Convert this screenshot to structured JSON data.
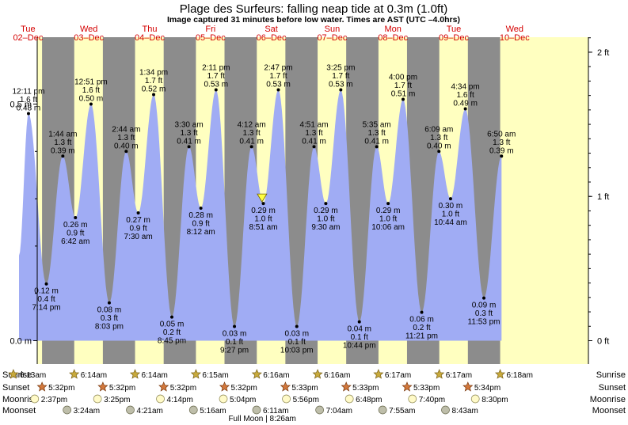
{
  "title": "Plage des Surfeurs: falling  neap tide at 0.3m (1.0ft)",
  "subtitle": "Image captured 31 minutes before low water. Times are AST (UTC –4.0hrs)",
  "colors": {
    "night": "#8c8c8c",
    "day": "#ffffc0",
    "water": "#a0acf4",
    "day_text": "#d40000",
    "sun_icon": "#c8aa3c",
    "sunset_icon": "#d2783c",
    "moonrise_icon": "#fffac8",
    "moonset_icon": "#bebeaa"
  },
  "chart_data": {
    "type": "area",
    "title": "Plage des Surfeurs: falling  neap tide at 0.3m (1.0ft)",
    "ylabel_left_unit": "m",
    "ylabel_right_unit": "ft",
    "y_ticks_left": [
      {
        "v": 0.5,
        "label": "0.5 m"
      },
      {
        "v": 0.0,
        "label": "0.0 m"
      }
    ],
    "y_ticks_right": [
      {
        "ft": 2,
        "label": "2 ft"
      },
      {
        "ft": 1,
        "label": "1 ft"
      },
      {
        "ft": 0,
        "label": "0 ft"
      }
    ],
    "ylim_m": [
      0,
      0.5
    ],
    "days": [
      {
        "name": "Tue",
        "date": "02–Dec"
      },
      {
        "name": "Wed",
        "date": "03–Dec"
      },
      {
        "name": "Thu",
        "date": "04–Dec"
      },
      {
        "name": "Fri",
        "date": "05–Dec"
      },
      {
        "name": "Sat",
        "date": "06–Dec"
      },
      {
        "name": "Sun",
        "date": "07–Dec"
      },
      {
        "name": "Mon",
        "date": "08–Dec"
      },
      {
        "name": "Tue",
        "date": "09–Dec"
      },
      {
        "name": "Wed",
        "date": "10–Dec"
      }
    ],
    "tides": [
      {
        "day": 0,
        "h": 12.18,
        "m": 0.48,
        "lines": [
          "12:11 pm",
          "1.6 ft",
          "0.48 m"
        ],
        "type": "high"
      },
      {
        "day": 0,
        "h": 19.23,
        "m": 0.12,
        "lines": [
          "0.12 m",
          "0.4 ft",
          "7:14 pm"
        ],
        "type": "low"
      },
      {
        "day": 1,
        "h": 1.73,
        "m": 0.39,
        "lines": [
          "1:44 am",
          "1.3 ft",
          "0.39 m"
        ],
        "type": "high"
      },
      {
        "day": 1,
        "h": 6.7,
        "m": 0.26,
        "lines": [
          "0.26 m",
          "0.9 ft",
          "6:42 am"
        ],
        "type": "low"
      },
      {
        "day": 1,
        "h": 12.85,
        "m": 0.5,
        "lines": [
          "12:51 pm",
          "1.6 ft",
          "0.50 m"
        ],
        "type": "high"
      },
      {
        "day": 1,
        "h": 20.05,
        "m": 0.08,
        "lines": [
          "0.08 m",
          "0.3 ft",
          "8:03 pm"
        ],
        "type": "low"
      },
      {
        "day": 2,
        "h": 2.73,
        "m": 0.4,
        "lines": [
          "2:44 am",
          "1.3 ft",
          "0.40 m"
        ],
        "type": "high"
      },
      {
        "day": 2,
        "h": 7.5,
        "m": 0.27,
        "lines": [
          "0.27 m",
          "0.9 ft",
          "7:30 am"
        ],
        "type": "low"
      },
      {
        "day": 2,
        "h": 13.57,
        "m": 0.52,
        "lines": [
          "1:34 pm",
          "1.7 ft",
          "0.52 m"
        ],
        "type": "high"
      },
      {
        "day": 2,
        "h": 20.75,
        "m": 0.05,
        "lines": [
          "0.05 m",
          "0.2 ft",
          "8:45 pm"
        ],
        "type": "low"
      },
      {
        "day": 3,
        "h": 3.5,
        "m": 0.41,
        "lines": [
          "3:30 am",
          "1.3 ft",
          "0.41 m"
        ],
        "type": "high"
      },
      {
        "day": 3,
        "h": 8.2,
        "m": 0.28,
        "lines": [
          "0.28 m",
          "0.9 ft",
          "8:12 am"
        ],
        "type": "low"
      },
      {
        "day": 3,
        "h": 14.18,
        "m": 0.53,
        "lines": [
          "2:11 pm",
          "1.7 ft",
          "0.53 m"
        ],
        "type": "high"
      },
      {
        "day": 3,
        "h": 21.45,
        "m": 0.03,
        "lines": [
          "0.03 m",
          "0.1 ft",
          "9:27 pm"
        ],
        "type": "low"
      },
      {
        "day": 4,
        "h": 4.2,
        "m": 0.41,
        "lines": [
          "4:12 am",
          "1.3 ft",
          "0.41 m"
        ],
        "type": "high"
      },
      {
        "day": 4,
        "h": 8.85,
        "m": 0.29,
        "lines": [
          "0.29 m",
          "1.0 ft",
          "8:51 am"
        ],
        "type": "low"
      },
      {
        "day": 4,
        "h": 14.78,
        "m": 0.53,
        "lines": [
          "2:47 pm",
          "1.7 ft",
          "0.53 m"
        ],
        "type": "high"
      },
      {
        "day": 4,
        "h": 22.05,
        "m": 0.03,
        "lines": [
          "0.03 m",
          "0.1 ft",
          "10:03 pm"
        ],
        "type": "low"
      },
      {
        "day": 5,
        "h": 4.85,
        "m": 0.41,
        "lines": [
          "4:51 am",
          "1.3 ft",
          "0.41 m"
        ],
        "type": "high"
      },
      {
        "day": 5,
        "h": 9.5,
        "m": 0.29,
        "lines": [
          "0.29 m",
          "1.0 ft",
          "9:30 am"
        ],
        "type": "low"
      },
      {
        "day": 5,
        "h": 15.42,
        "m": 0.53,
        "lines": [
          "3:25 pm",
          "1.7 ft",
          "0.53 m"
        ],
        "type": "high"
      },
      {
        "day": 5,
        "h": 22.73,
        "m": 0.04,
        "lines": [
          "0.04 m",
          "0.1 ft",
          "10:44 pm"
        ],
        "type": "low"
      },
      {
        "day": 6,
        "h": 5.58,
        "m": 0.41,
        "lines": [
          "5:35 am",
          "1.3 ft",
          "0.41 m"
        ],
        "type": "high"
      },
      {
        "day": 6,
        "h": 10.1,
        "m": 0.29,
        "lines": [
          "0.29 m",
          "1.0 ft",
          "10:06 am"
        ],
        "type": "low"
      },
      {
        "day": 6,
        "h": 16.0,
        "m": 0.51,
        "lines": [
          "4:00 pm",
          "1.7 ft",
          "0.51 m"
        ],
        "type": "high"
      },
      {
        "day": 6,
        "h": 23.35,
        "m": 0.06,
        "lines": [
          "0.06 m",
          "0.2 ft",
          "11:21 pm"
        ],
        "type": "low"
      },
      {
        "day": 7,
        "h": 6.15,
        "m": 0.4,
        "lines": [
          "6:09 am",
          "1.3 ft",
          "0.40 m"
        ],
        "type": "high"
      },
      {
        "day": 7,
        "h": 10.73,
        "m": 0.3,
        "lines": [
          "0.30 m",
          "1.0 ft",
          "10:44 am"
        ],
        "type": "low"
      },
      {
        "day": 7,
        "h": 16.57,
        "m": 0.49,
        "lines": [
          "4:34 pm",
          "1.6 ft",
          "0.49 m"
        ],
        "type": "high"
      },
      {
        "day": 7,
        "h": 23.88,
        "m": 0.09,
        "lines": [
          "0.09 m",
          "0.3 ft",
          "11:53 pm"
        ],
        "type": "low"
      },
      {
        "day": 8,
        "h": 6.83,
        "m": 0.39,
        "lines": [
          "6:50 am",
          "1.3 ft",
          "0.39 m"
        ],
        "type": "high"
      }
    ],
    "current": {
      "day": 4,
      "h": 8.33,
      "m": 0.3
    },
    "rows": [
      {
        "label": "Sunrise",
        "kind": "sunrise",
        "items": [
          {
            "day": 0,
            "h": 6.22,
            "t": "6:13am"
          },
          {
            "day": 1,
            "h": 6.23,
            "t": "6:14am"
          },
          {
            "day": 2,
            "h": 6.23,
            "t": "6:14am"
          },
          {
            "day": 3,
            "h": 6.25,
            "t": "6:15am"
          },
          {
            "day": 4,
            "h": 6.27,
            "t": "6:16am"
          },
          {
            "day": 5,
            "h": 6.27,
            "t": "6:16am"
          },
          {
            "day": 6,
            "h": 6.28,
            "t": "6:17am"
          },
          {
            "day": 7,
            "h": 6.28,
            "t": "6:17am"
          },
          {
            "day": 8,
            "h": 6.3,
            "t": "6:18am"
          }
        ]
      },
      {
        "label": "Sunset",
        "kind": "sunset",
        "items": [
          {
            "day": 0,
            "h": 17.53,
            "t": "5:32pm"
          },
          {
            "day": 1,
            "h": 17.53,
            "t": "5:32pm"
          },
          {
            "day": 2,
            "h": 17.53,
            "t": "5:32pm"
          },
          {
            "day": 3,
            "h": 17.53,
            "t": "5:32pm"
          },
          {
            "day": 4,
            "h": 17.55,
            "t": "5:33pm"
          },
          {
            "day": 5,
            "h": 17.55,
            "t": "5:33pm"
          },
          {
            "day": 6,
            "h": 17.55,
            "t": "5:33pm"
          },
          {
            "day": 7,
            "h": 17.57,
            "t": "5:34pm"
          }
        ]
      },
      {
        "label": "Moonrise",
        "kind": "moonrise",
        "items": [
          {
            "day": 0,
            "h": 14.62,
            "t": "2:37pm"
          },
          {
            "day": 1,
            "h": 15.42,
            "t": "3:25pm"
          },
          {
            "day": 2,
            "h": 16.23,
            "t": "4:14pm"
          },
          {
            "day": 3,
            "h": 17.07,
            "t": "5:04pm"
          },
          {
            "day": 4,
            "h": 17.93,
            "t": "5:56pm"
          },
          {
            "day": 5,
            "h": 18.8,
            "t": "6:48pm"
          },
          {
            "day": 6,
            "h": 19.67,
            "t": "7:40pm"
          },
          {
            "day": 7,
            "h": 20.5,
            "t": "8:30pm"
          }
        ]
      },
      {
        "label": "Moonset",
        "kind": "moonset",
        "items": [
          {
            "day": 1,
            "h": 3.4,
            "t": "3:24am"
          },
          {
            "day": 2,
            "h": 4.35,
            "t": "4:21am"
          },
          {
            "day": 3,
            "h": 5.27,
            "t": "5:16am"
          },
          {
            "day": 4,
            "h": 6.18,
            "t": "6:11am"
          },
          {
            "day": 5,
            "h": 7.07,
            "t": "7:04am"
          },
          {
            "day": 6,
            "h": 7.92,
            "t": "7:55am"
          },
          {
            "day": 7,
            "h": 8.72,
            "t": "8:43am"
          }
        ]
      }
    ],
    "moon_phase": {
      "day": 4,
      "h": 8.43,
      "label": "Full Moon | 8:26am"
    }
  }
}
